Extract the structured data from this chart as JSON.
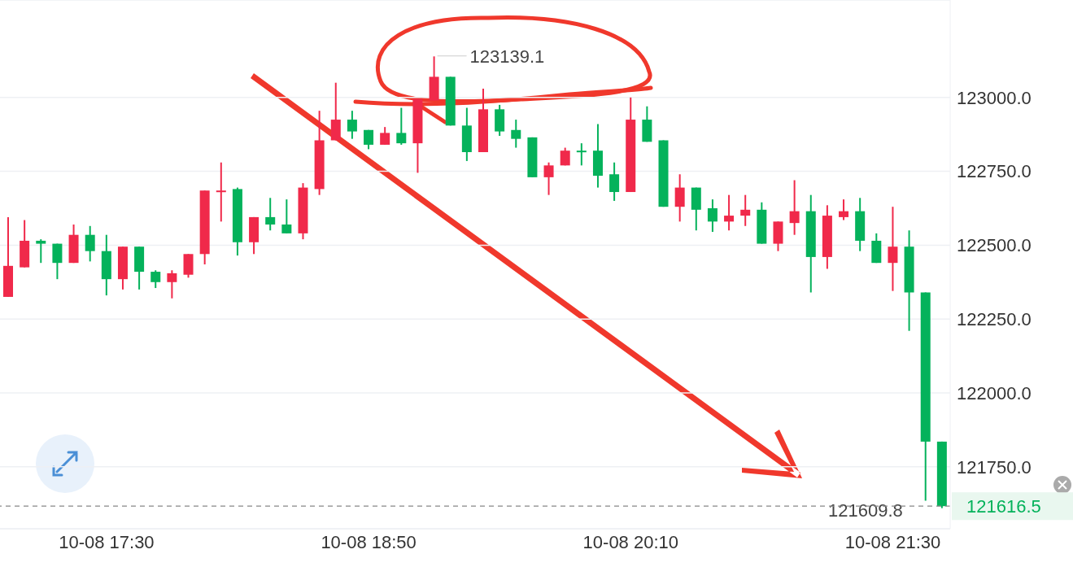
{
  "chart_data": {
    "type": "candlestick",
    "categories": [
      null,
      null,
      null,
      null,
      null,
      null,
      "10-08 17:30",
      null,
      null,
      null,
      null,
      null,
      null,
      null,
      null,
      null,
      null,
      null,
      null,
      null,
      null,
      null,
      "10-08 18:50",
      null,
      null,
      null,
      null,
      null,
      null,
      null,
      null,
      null,
      null,
      null,
      null,
      null,
      null,
      null,
      "10-08 20:10",
      null,
      null,
      null,
      null,
      null,
      null,
      null,
      null,
      null,
      null,
      null,
      null,
      null,
      null,
      null,
      "10-08 21:30",
      null,
      null,
      null
    ],
    "ohlc": [
      [
        122325,
        122595,
        122325,
        122430
      ],
      [
        122425,
        122585,
        122425,
        122515
      ],
      [
        122515,
        122520,
        122440,
        122505
      ],
      [
        122505,
        122505,
        122385,
        122440
      ],
      [
        122440,
        122570,
        122440,
        122535
      ],
      [
        122535,
        122565,
        122445,
        122480
      ],
      [
        122480,
        122535,
        122330,
        122385
      ],
      [
        122385,
        122495,
        122350,
        122495
      ],
      [
        122495,
        122495,
        122350,
        122410
      ],
      [
        122410,
        122415,
        122355,
        122375
      ],
      [
        122375,
        122415,
        122320,
        122405
      ],
      [
        122400,
        122470,
        122390,
        122470
      ],
      [
        122470,
        122685,
        122435,
        122685
      ],
      [
        122680,
        122780,
        122580,
        122685
      ],
      [
        122690,
        122695,
        122465,
        122510
      ],
      [
        122510,
        122595,
        122470,
        122595
      ],
      [
        122595,
        122660,
        122550,
        122570
      ],
      [
        122570,
        122655,
        122540,
        122540
      ],
      [
        122540,
        122710,
        122520,
        122695
      ],
      [
        122690,
        122955,
        122670,
        122855
      ],
      [
        122855,
        123050,
        122855,
        122925
      ],
      [
        122925,
        122955,
        122860,
        122885
      ],
      [
        122890,
        122890,
        122825,
        122840
      ],
      [
        122840,
        122900,
        122840,
        122880
      ],
      [
        122880,
        122965,
        122840,
        122845
      ],
      [
        122845,
        122995,
        122745,
        122995
      ],
      [
        122990,
        123139.1,
        122990,
        123070
      ],
      [
        123070,
        123070,
        122905,
        122905
      ],
      [
        122905,
        122965,
        122785,
        122815
      ],
      [
        122815,
        123030,
        122815,
        122960
      ],
      [
        122960,
        122975,
        122870,
        122885
      ],
      [
        122890,
        122925,
        122830,
        122860
      ],
      [
        122865,
        122865,
        122730,
        122730
      ],
      [
        122730,
        122780,
        122670,
        122770
      ],
      [
        122770,
        122830,
        122770,
        122820
      ],
      [
        122820,
        122845,
        122770,
        122815
      ],
      [
        122820,
        122910,
        122695,
        122735
      ],
      [
        122740,
        122780,
        122650,
        122680
      ],
      [
        122680,
        123000,
        122680,
        122925
      ],
      [
        122925,
        122970,
        122850,
        122850
      ],
      [
        122855,
        122855,
        122630,
        122630
      ],
      [
        122630,
        122740,
        122580,
        122695
      ],
      [
        122695,
        122695,
        122550,
        122620
      ],
      [
        122625,
        122655,
        122545,
        122580
      ],
      [
        122580,
        122670,
        122550,
        122600
      ],
      [
        122600,
        122670,
        122565,
        122620
      ],
      [
        122620,
        122645,
        122505,
        122505
      ],
      [
        122505,
        122580,
        122480,
        122580
      ],
      [
        122575,
        122720,
        122535,
        122615
      ],
      [
        122615,
        122670,
        122340,
        122460
      ],
      [
        122460,
        122635,
        122420,
        122600
      ],
      [
        122595,
        122655,
        122585,
        122615
      ],
      [
        122615,
        122660,
        122480,
        122515
      ],
      [
        122515,
        122540,
        122440,
        122440
      ],
      [
        122440,
        122630,
        122345,
        122495
      ],
      [
        122495,
        122550,
        122210,
        122340
      ],
      [
        122340,
        122340,
        121635,
        121835
      ],
      [
        121835,
        121835,
        121609.8,
        121616.5
      ]
    ],
    "colors": [
      "#f0294a",
      "#f0294a",
      "#04b25b",
      "#04b25b",
      "#f0294a",
      "#04b25b",
      "#04b25b",
      "#f0294a",
      "#04b25b",
      "#04b25b",
      "#f0294a",
      "#f0294a",
      "#f0294a",
      "#f0294a",
      "#04b25b",
      "#f0294a",
      "#04b25b",
      "#04b25b",
      "#f0294a",
      "#f0294a",
      "#f0294a",
      "#04b25b",
      "#04b25b",
      "#f0294a",
      "#04b25b",
      "#f0294a",
      "#f0294a",
      "#04b25b",
      "#04b25b",
      "#f0294a",
      "#04b25b",
      "#04b25b",
      "#04b25b",
      "#f0294a",
      "#f0294a",
      "#04b25b",
      "#04b25b",
      "#04b25b",
      "#f0294a",
      "#04b25b",
      "#04b25b",
      "#f0294a",
      "#04b25b",
      "#04b25b",
      "#f0294a",
      "#f0294a",
      "#04b25b",
      "#f0294a",
      "#f0294a",
      "#04b25b",
      "#f0294a",
      "#f0294a",
      "#04b25b",
      "#04b25b",
      "#f0294a",
      "#04b25b",
      "#04b25b",
      "#04b25b"
    ],
    "ylim": [
      121540,
      123330
    ],
    "yticks": [
      {
        "value": 121750,
        "label": "121750.0"
      },
      {
        "value": 122000,
        "label": "122000.0"
      },
      {
        "value": 122250,
        "label": "122250.0"
      },
      {
        "value": 122500,
        "label": "122500.0"
      },
      {
        "value": 122750,
        "label": "122750.0"
      },
      {
        "value": 123000,
        "label": "123000.0"
      }
    ],
    "grid": "y",
    "ref_lines": [
      {
        "axis": "y",
        "value": 121616.5,
        "label": "121616.5",
        "color": "#888888",
        "line_style": "dashed"
      }
    ],
    "annotations": [
      "123139.1",
      "121609.8"
    ]
  }
}
